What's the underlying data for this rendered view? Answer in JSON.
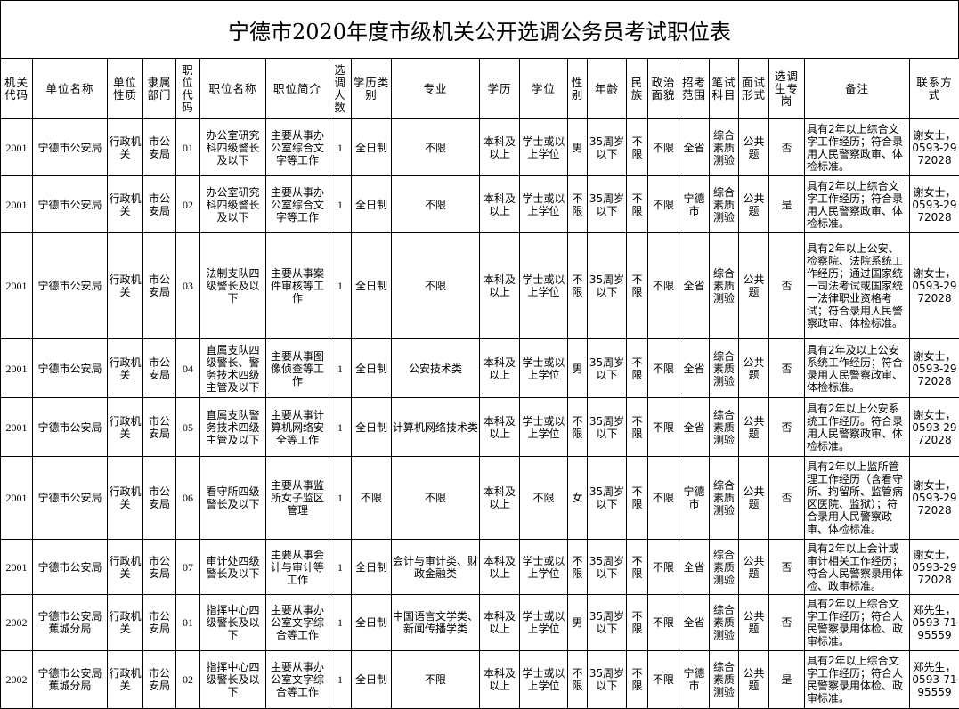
{
  "title": "宁德市2020年度市级机关公开选调公务员考试职位表",
  "headers": [
    "机关代码",
    "单位名称",
    "单位性质",
    "隶属部门",
    "职位代码",
    "职位名称",
    "职位简介",
    "选调人数",
    "学历类别",
    "专业",
    "学历",
    "学位",
    "性别",
    "年龄",
    "民族",
    "政治面貌",
    "招考范围",
    "笔试科目",
    "面试形式",
    "选调生专岗",
    "备注",
    "联系方式"
  ],
  "rows": [
    [
      "2001",
      "宁德市公安局",
      "行政机关",
      "市公安局",
      "01",
      "办公室研究科四级警长及以下",
      "主要从事办公室综合文字等工作",
      "1",
      "全日制",
      "不限",
      "本科及以上",
      "学士或以上学位",
      "男",
      "35周岁以下",
      "不限",
      "不限",
      "全省",
      "综合素质测验",
      "公共题",
      "否",
      "具有2年以上综合文字工作经历；符合录用人民警察政审、体检标准。",
      "谢女士，0593-2972028"
    ],
    [
      "2001",
      "宁德市公安局",
      "行政机关",
      "市公安局",
      "02",
      "办公室研究科四级警长及以下",
      "主要从事办公室综合文字等工作",
      "1",
      "全日制",
      "不限",
      "本科及以上",
      "学士或以上学位",
      "不限",
      "35周岁以下",
      "不限",
      "不限",
      "宁德市",
      "综合素质测验",
      "公共题",
      "是",
      "具有2年以上综合文字工作经历；符合录用人民警察政审、体检标准。",
      "谢女士，0593-2972028"
    ],
    [
      "2001",
      "宁德市公安局",
      "行政机关",
      "市公安局",
      "03",
      "法制支队四级警长及以下",
      "主要从事案件审核等工作",
      "1",
      "全日制",
      "不限",
      "本科及以上",
      "学士或以上学位",
      "不限",
      "35周岁以下",
      "不限",
      "不限",
      "全省",
      "综合素质测验",
      "公共题",
      "否",
      "具有2年以上公安、检察院、法院系统工作经历；通过国家统一司法考试或国家统一法律职业资格考试；符合录用人民警察政审、体检标准。",
      "谢女士，0593-2972028"
    ],
    [
      "2001",
      "宁德市公安局",
      "行政机关",
      "市公安局",
      "04",
      "直属支队四级警长、警务技术四级主管及以下",
      "主要从事图像侦查等工作",
      "1",
      "全日制",
      "公安技术类",
      "本科及以上",
      "学士或以上学位",
      "男",
      "35周岁以下",
      "不限",
      "不限",
      "全省",
      "综合素质测验",
      "公共题",
      "否",
      "具有2年及以上公安系统工作经历；符合录用人民警察政审、体检标准。",
      "谢女士，0593-2972028"
    ],
    [
      "2001",
      "宁德市公安局",
      "行政机关",
      "市公安局",
      "05",
      "直属支队警务技术四级主管及以下",
      "主要从事计算机网络安全等工作",
      "1",
      "全日制",
      "计算机网络技术类",
      "本科及以上",
      "学士或以上学位",
      "不限",
      "35周岁以下",
      "不限",
      "不限",
      "全省",
      "综合素质测验",
      "公共题",
      "否",
      "具有2年以上公安系统工作经历。符合录用人民警察政审、体检标准。",
      "谢女士，0593-2972028"
    ],
    [
      "2001",
      "宁德市公安局",
      "行政机关",
      "市公安局",
      "06",
      "看守所四级警长及以下",
      "主要从事监所女子监区管理",
      "1",
      "不限",
      "不限",
      "本科及以上",
      "不限",
      "女",
      "35周岁以下",
      "不限",
      "不限",
      "宁德市",
      "综合素质测验",
      "公共题",
      "否",
      "具有2年以上监所管理工作经历（含看守所、拘留所、监管病区医院、监狱）；符合录用人民警察政审、体检标准。",
      "谢女士，0593-2972028"
    ],
    [
      "2001",
      "宁德市公安局",
      "行政机关",
      "市公安局",
      "07",
      "审计处四级警长及以下",
      "主要从事会计与审计等工作",
      "1",
      "全日制",
      "会计与审计类、财政金融类",
      "本科及以上",
      "学士或以上学位",
      "不限",
      "35周岁以下",
      "不限",
      "不限",
      "全省",
      "综合素质测验",
      "公共题",
      "否",
      "具有2年以上会计或审计相关工作经历；符合人民警察录用体检、政审标准。",
      "谢女士，0593-2972028"
    ],
    [
      "2002",
      "宁德市公安局蕉城分局",
      "行政机关",
      "市公安局",
      "01",
      "指挥中心四级警长及以下",
      "主要从事办公室文字综合等工作",
      "1",
      "全日制",
      "中国语言文学类、新闻传播学类",
      "本科及以上",
      "学士或以上学位",
      "男",
      "35周岁以下",
      "不限",
      "不限",
      "全省",
      "综合素质测验",
      "公共题",
      "否",
      "具有2年以上综合文字工作经历；符合人民警察录用体检、政审标准。",
      "郑先生，0593-7195559"
    ],
    [
      "2002",
      "宁德市公安局蕉城分局",
      "行政机关",
      "市公安局",
      "02",
      "指挥中心四级警长及以下",
      "主要从事办公室文字综合等工作",
      "1",
      "全日制",
      "不限",
      "本科及以上",
      "学士或以上学位",
      "不限",
      "35周岁以下",
      "不限",
      "不限",
      "宁德市",
      "综合素质测验",
      "公共题",
      "是",
      "具有2年以上综合文字工作经历；符合人民警察录用体检、政审标准。",
      "郑先生，0593-7195559"
    ]
  ]
}
